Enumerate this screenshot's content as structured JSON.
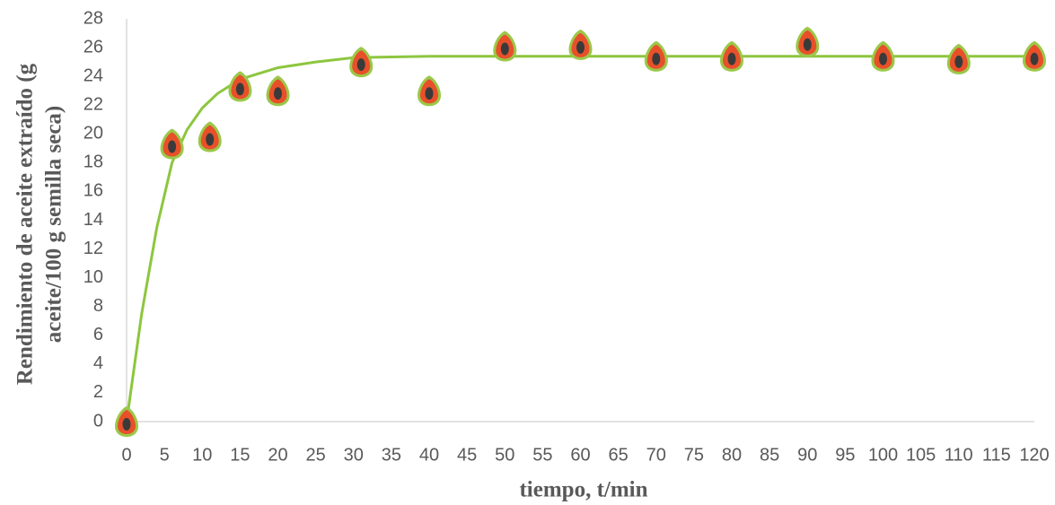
{
  "chart_data": {
    "type": "scatter",
    "xlabel": "tiempo, t/min",
    "ylabel": [
      "Rendimiento de aceite extraído (g",
      "aceite/100 g semilla seca)"
    ],
    "x": [
      0,
      6,
      11,
      15,
      20,
      31,
      40,
      50,
      60,
      70,
      80,
      90,
      100,
      110,
      120
    ],
    "values": [
      0,
      19.3,
      19.8,
      23.3,
      23.0,
      25.0,
      23.0,
      26.1,
      26.2,
      25.4,
      25.4,
      26.4,
      25.4,
      25.2,
      25.4
    ],
    "marker_color": "#e8502a",
    "fit": {
      "color": "#8dc63f",
      "x": [
        0,
        2,
        4,
        6,
        8,
        10,
        12,
        15,
        20,
        25,
        30,
        40,
        120
      ],
      "values": [
        0,
        7.5,
        13.5,
        18,
        20.3,
        21.8,
        22.8,
        23.8,
        24.6,
        25.0,
        25.3,
        25.4,
        25.4
      ]
    },
    "xlim": [
      0,
      120
    ],
    "xticks": [
      0,
      5,
      10,
      15,
      20,
      25,
      30,
      35,
      40,
      45,
      50,
      55,
      60,
      65,
      70,
      75,
      80,
      85,
      90,
      95,
      100,
      105,
      110,
      115,
      120
    ],
    "ylim": [
      0,
      28
    ],
    "yticks": [
      0,
      2,
      4,
      6,
      8,
      10,
      12,
      14,
      16,
      18,
      20,
      22,
      24,
      26,
      28
    ],
    "grid": false
  }
}
